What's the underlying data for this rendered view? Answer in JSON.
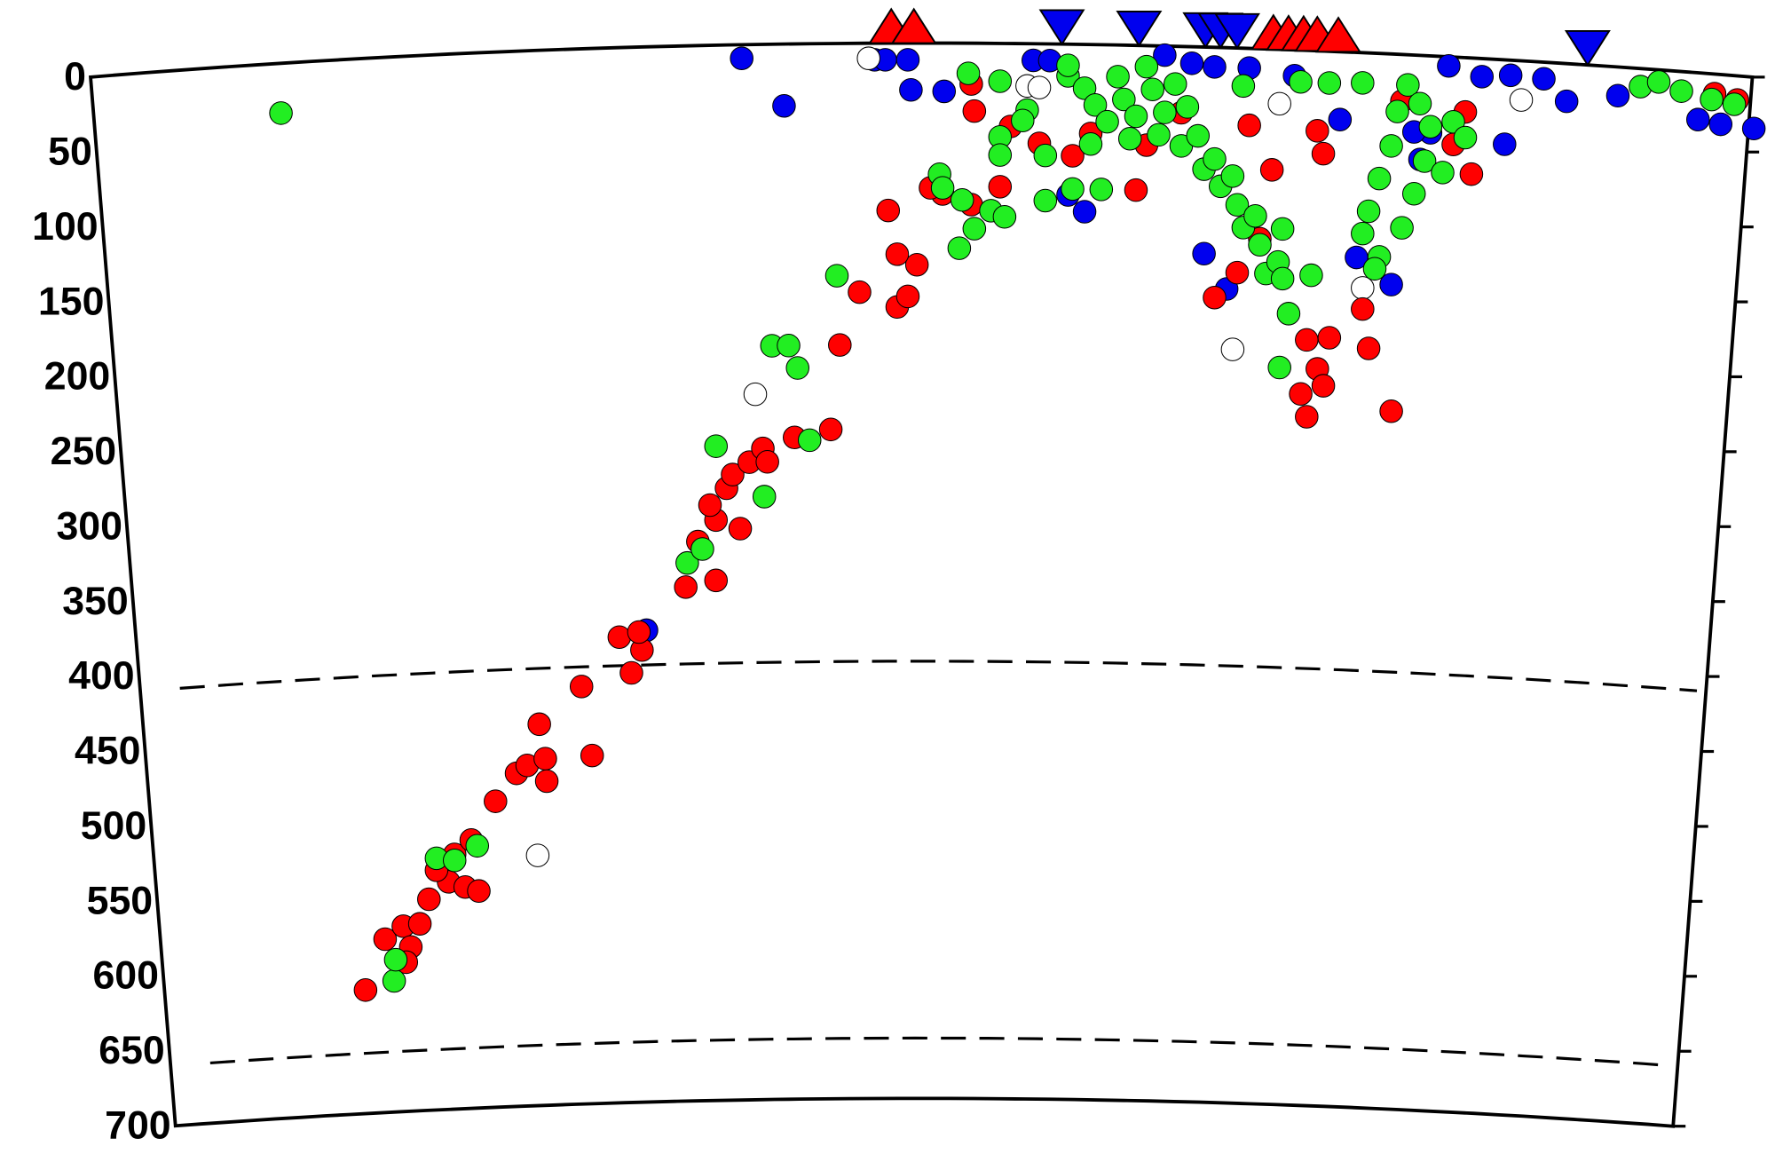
{
  "chart_data": {
    "type": "scatter",
    "xlim": [
      0,
      1100
    ],
    "ylim": [
      0,
      700
    ],
    "y_inverted": true,
    "yticks": [
      0,
      50,
      100,
      150,
      200,
      250,
      300,
      350,
      400,
      450,
      500,
      550,
      600,
      650,
      700
    ],
    "discontinuities": [
      410,
      660
    ],
    "series": [
      {
        "color": "#0000ee",
        "x": [
          431,
          459,
          519,
          526,
          541,
          543,
          565,
          624,
          635,
          658,
          647,
          711,
          729,
          744,
          767,
          797,
          737,
          752,
          827,
          838,
          861,
          880,
          887,
          899,
          921,
          940,
          962,
          977,
          1011,
          1064,
          1079,
          1101,
          368,
          936,
          876
        ],
        "values": [
          9,
          41,
          11,
          11,
          11,
          31,
          32,
          11,
          11,
          111,
          100,
          6,
          11,
          13,
          13,
          17,
          137,
          160,
          45,
          136,
          153,
          69,
          51,
          6,
          12,
          10,
          11,
          25,
          19,
          31,
          33,
          34,
          387,
          56,
          51
        ]
      },
      {
        "color": "#ffffff",
        "x": [
          440,
          296,
          756,
          787,
          842,
          947,
          515,
          620,
          628
        ],
        "values": [
          232,
          534,
          200,
          36,
          156,
          26,
          10,
          28,
          29
        ]
      },
      {
        "color": "#ff0000",
        "x": [
          182,
          195,
          207,
          218,
          212,
          209,
          224,
          237,
          248,
          257,
          229,
          241,
          252,
          268,
          282,
          289,
          301,
          302,
          297,
          332,
          325,
          350,
          358,
          365,
          363,
          394,
          414,
          402,
          414,
          410,
          421,
          430,
          425,
          436,
          445,
          448,
          466,
          490,
          496,
          509,
          534,
          541,
          547,
          534,
          528,
          564,
          583,
          602,
          556,
          583,
          585,
          609,
          628,
          650,
          692,
          722,
          767,
          744,
          759,
          774,
          805,
          812,
          801,
          805,
          816,
          820,
          842,
          861,
          846,
          812,
          816,
          868,
          910,
          914,
          1075,
          1090,
          902,
          782,
          662,
          699
        ],
        "values": [
          618,
          585,
          577,
          576,
          591,
          601,
          560,
          549,
          553,
          556,
          541,
          531,
          522,
          497,
          479,
          474,
          470,
          485,
          447,
          469,
          423,
          391,
          415,
          400,
          388,
          359,
          355,
          329,
          315,
          305,
          294,
          321,
          285,
          277,
          268,
          277,
          261,
          256,
          200,
          165,
          175,
          168,
          147,
          140,
          111,
          100,
          107,
          95,
          96,
          27,
          45,
          55,
          66,
          74,
          96,
          44,
          51,
          166,
          149,
          126,
          192,
          211,
          228,
          243,
          222,
          190,
          170,
          237,
          196,
          53,
          68,
          31,
          36,
          77,
          13,
          16,
          58,
          80,
          59,
          66
        ]
      },
      {
        "color": "#22ee22",
        "x": [
          126,
          201,
          202,
          229,
          241,
          256,
          395,
          405,
          414,
          446,
          476,
          451,
          462,
          468,
          494,
          562,
          564,
          575,
          577,
          585,
          596,
          605,
          602,
          620,
          632,
          581,
          602,
          647,
          647,
          658,
          665,
          673,
          662,
          680,
          684,
          692,
          688,
          699,
          703,
          711,
          707,
          718,
          726,
          722,
          733,
          737,
          744,
          748,
          756,
          759,
          763,
          771,
          774,
          778,
          786,
          789,
          789,
          793,
          787,
          808,
          632,
          617,
          602,
          650,
          669,
          842,
          846,
          853,
          861,
          865,
          872,
          880,
          883,
          876,
          868,
          853,
          887,
          895,
          902,
          910,
          850,
          763,
          801,
          820,
          842,
          1026,
          1038,
          1053,
          1073,
          1088
        ],
        "values": [
          33,
          613,
          599,
          533,
          535,
          526,
          343,
          334,
          266,
          300,
          263,
          200,
          200,
          215,
          154,
          87,
          96,
          136,
          104,
          123,
          111,
          115,
          62,
          44,
          104,
          20,
          25,
          21,
          14,
          29,
          40,
          51,
          66,
          21,
          36,
          47,
          62,
          14,
          29,
          44,
          59,
          25,
          40,
          66,
          59,
          81,
          74,
          92,
          85,
          104,
          119,
          111,
          130,
          149,
          141,
          119,
          152,
          175,
          211,
          149,
          74,
          51,
          74,
          96,
          96,
          120,
          105,
          83,
          61,
          38,
          20,
          32,
          70,
          92,
          115,
          135,
          47,
          77,
          43,
          53,
          143,
          25,
          21,
          21,
          20,
          12,
          8,
          13,
          17,
          19
        ]
      }
    ],
    "surface_markers": [
      {
        "color": "#ff0000",
        "marker": "triangle-up",
        "x": [
          530,
          545,
          783,
          793,
          803,
          812,
          826
        ]
      },
      {
        "color": "#0000ee",
        "marker": "triangle-down",
        "x": [
          643,
          694,
          738,
          748,
          759,
          991
        ]
      }
    ]
  }
}
